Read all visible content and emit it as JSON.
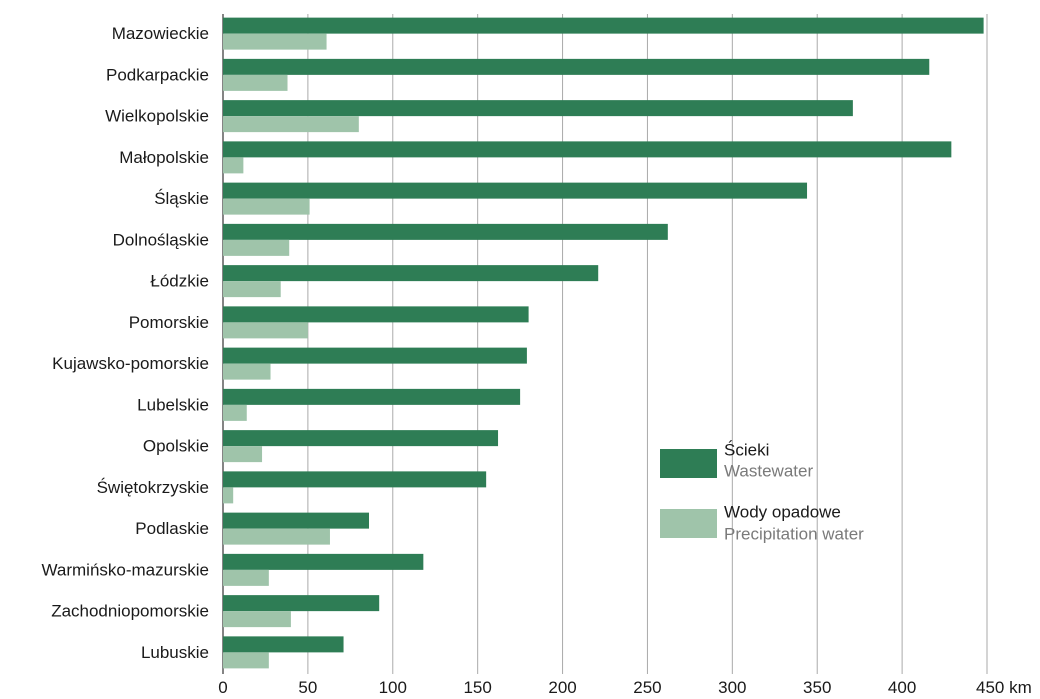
{
  "chart_data": {
    "type": "bar",
    "orientation": "horizontal",
    "categories": [
      "Mazowieckie",
      "Podkarpackie",
      "Wielkopolskie",
      "Małopolskie",
      "Śląskie",
      "Dolnośląskie",
      "Łódzkie",
      "Pomorskie",
      "Kujawsko-pomorskie",
      "Lubelskie",
      "Opolskie",
      "Świętokrzyskie",
      "Podlaskie",
      "Warmińsko-mazurskie",
      "Zachodniopomorskie",
      "Lubuskie"
    ],
    "series": [
      {
        "name": "Ścieki",
        "name_en": "Wastewater",
        "color": "#2e7d55",
        "values": [
          448,
          416,
          371,
          429,
          344,
          262,
          221,
          180,
          179,
          175,
          162,
          155,
          86,
          118,
          92,
          71
        ]
      },
      {
        "name": "Wody opadowe",
        "name_en": "Precipitation water",
        "color": "#9fc4aa",
        "values": [
          61,
          38,
          80,
          12,
          51,
          39,
          34,
          50,
          28,
          14,
          23,
          6,
          63,
          27,
          40,
          27
        ]
      }
    ],
    "xlim": [
      0,
      450
    ],
    "xticks": [
      "0",
      "50",
      "100",
      "150",
      "200",
      "250",
      "300",
      "350",
      "400",
      "450 km"
    ],
    "grid": true,
    "legend_position": "center-right"
  }
}
